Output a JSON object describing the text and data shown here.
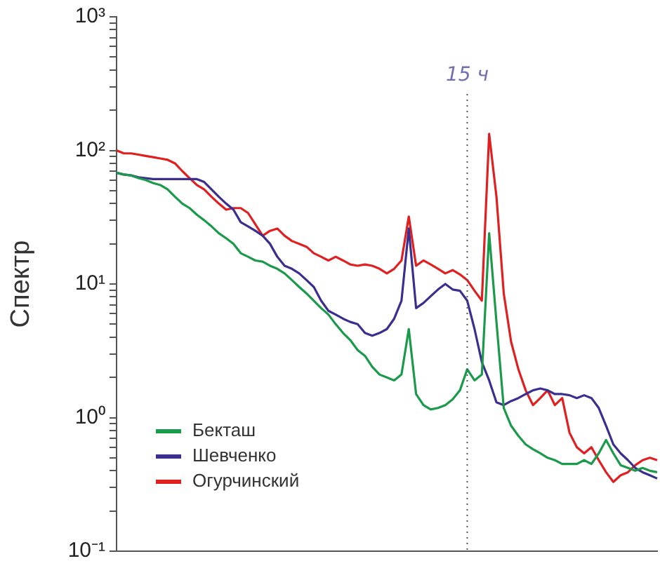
{
  "chart_data": {
    "type": "line",
    "ylabel": "Спектр",
    "log": "y",
    "grid": false,
    "legend": "bottom left",
    "tick_labels": "y",
    "marker": "none",
    "line_style": "solid",
    "categories": [
      null,
      null,
      null,
      null,
      null,
      null,
      null,
      null,
      null,
      null,
      null,
      null,
      null,
      null,
      null,
      null,
      null,
      null,
      null,
      null,
      null,
      null,
      null,
      null,
      null,
      null,
      null,
      null,
      null,
      null,
      null,
      null,
      null,
      null,
      null,
      null,
      null,
      null,
      null,
      null,
      null,
      null,
      null,
      null,
      null,
      null,
      null,
      null,
      null,
      null,
      null,
      null,
      null,
      null,
      null,
      null,
      null,
      null,
      null,
      null,
      null,
      null,
      null,
      null,
      null,
      null,
      null,
      null,
      null,
      null,
      null,
      null,
      null,
      null,
      null
    ],
    "ylim": [
      0.1,
      1000
    ],
    "yticks": [
      {
        "value": 0.1,
        "label": "10⁻¹"
      },
      {
        "value": 0.2,
        "label": null
      },
      {
        "value": 0.3,
        "label": null
      },
      {
        "value": 0.4,
        "label": null
      },
      {
        "value": 0.5,
        "label": null
      },
      {
        "value": 0.6,
        "label": null
      },
      {
        "value": 0.7,
        "label": null
      },
      {
        "value": 0.8,
        "label": null
      },
      {
        "value": 0.9,
        "label": null
      },
      {
        "value": 1,
        "label": "10⁰"
      },
      {
        "value": 2,
        "label": null
      },
      {
        "value": 3,
        "label": null
      },
      {
        "value": 4,
        "label": null
      },
      {
        "value": 5,
        "label": null
      },
      {
        "value": 6,
        "label": null
      },
      {
        "value": 7,
        "label": null
      },
      {
        "value": 8,
        "label": null
      },
      {
        "value": 9,
        "label": null
      },
      {
        "value": 10,
        "label": "10¹"
      },
      {
        "value": 20,
        "label": null
      },
      {
        "value": 30,
        "label": null
      },
      {
        "value": 40,
        "label": null
      },
      {
        "value": 50,
        "label": null
      },
      {
        "value": 60,
        "label": null
      },
      {
        "value": 70,
        "label": null
      },
      {
        "value": 80,
        "label": null
      },
      {
        "value": 90,
        "label": null
      },
      {
        "value": 100,
        "label": "10²"
      },
      {
        "value": 200,
        "label": null
      },
      {
        "value": 300,
        "label": null
      },
      {
        "value": 400,
        "label": null
      },
      {
        "value": 500,
        "label": null
      },
      {
        "value": 600,
        "label": null
      },
      {
        "value": 700,
        "label": null
      },
      {
        "value": 800,
        "label": null
      },
      {
        "value": 900,
        "label": null
      },
      {
        "value": 1000,
        "label": "10³"
      }
    ],
    "annotations": [
      "15 ч"
    ],
    "series": [
      {
        "name": "Бекташ",
        "color": "#1a9a4a",
        "values": [
          68,
          66,
          65,
          62,
          60,
          57,
          55,
          51,
          45,
          40,
          37,
          33,
          30,
          27,
          24,
          22,
          20,
          17,
          16,
          15,
          14.7,
          13.7,
          13,
          12,
          10.7,
          9.5,
          8.5,
          7.5,
          6.6,
          5.9,
          5.0,
          4.3,
          3.8,
          3.2,
          2.9,
          2.4,
          2.1,
          2.0,
          1.9,
          2.1,
          4.6,
          1.5,
          1.24,
          1.15,
          1.18,
          1.24,
          1.37,
          1.6,
          2.3,
          1.9,
          2.1,
          24,
          5.2,
          1.18,
          0.87,
          0.73,
          0.63,
          0.58,
          0.54,
          0.5,
          0.48,
          0.45,
          0.45,
          0.45,
          0.48,
          0.45,
          0.54,
          0.68,
          0.54,
          0.44,
          0.42,
          0.4,
          0.42,
          0.4,
          0.39
        ]
      },
      {
        "name": "Шевченко",
        "color": "#3a2f8f",
        "values": [
          68,
          66,
          65,
          63,
          62,
          61,
          61,
          61,
          61,
          61,
          61,
          61,
          58,
          51,
          45,
          40,
          36,
          29,
          27,
          25,
          23,
          20,
          16,
          13.7,
          13,
          12,
          10.7,
          9.5,
          7.5,
          6.3,
          5.9,
          5.5,
          5.2,
          5.0,
          4.3,
          4.1,
          4.3,
          4.6,
          5.5,
          7.5,
          26,
          6.6,
          7.2,
          8.1,
          9.1,
          10,
          9.1,
          8.9,
          7.5,
          4.6,
          2.6,
          1.9,
          1.3,
          1.24,
          1.33,
          1.4,
          1.5,
          1.6,
          1.65,
          1.6,
          1.5,
          1.5,
          1.47,
          1.4,
          1.47,
          1.4,
          1.18,
          0.87,
          0.63,
          0.54,
          0.48,
          0.42,
          0.39,
          0.37,
          0.35
        ]
      },
      {
        "name": "Огурчинский",
        "color": "#e02020",
        "values": [
          100,
          95,
          95,
          93,
          91,
          89,
          87,
          85,
          80,
          70,
          62,
          55,
          51,
          45,
          40,
          36,
          37,
          37,
          34,
          28,
          23,
          25,
          26,
          23,
          21,
          20,
          19,
          17,
          16,
          15,
          16,
          15,
          14,
          13.7,
          14,
          13.7,
          13,
          12,
          13,
          15,
          32,
          13.7,
          15,
          14,
          13,
          12,
          12.7,
          11.8,
          10.7,
          8.9,
          7.5,
          133,
          45,
          8.5,
          3.7,
          2.3,
          1.6,
          1.24,
          1.4,
          1.6,
          1.24,
          1.4,
          0.77,
          0.6,
          0.54,
          0.6,
          0.48,
          0.39,
          0.33,
          0.37,
          0.39,
          0.44,
          0.48,
          0.5,
          0.48
        ]
      }
    ]
  }
}
